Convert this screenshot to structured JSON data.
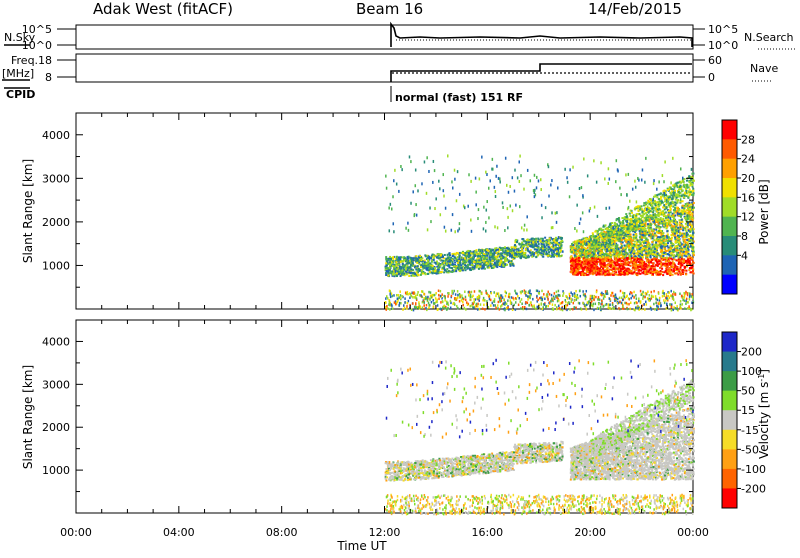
{
  "header": {
    "station": "Adak West (fitACF)",
    "beam": "Beam 16",
    "date": "14/Feb/2015"
  },
  "panels_top": {
    "nsky_label": "N.Sky",
    "nsky_ticks": [
      "10^5",
      "10^0"
    ],
    "nsearch_label": "N.Search",
    "nsearch_ticks": [
      "10^5",
      "10^0"
    ],
    "freq_label": "Freq.",
    "freq_unit": "[MHz]",
    "freq_ticks": [
      "18",
      "8"
    ],
    "nave_label": "Nave",
    "nave_ticks": [
      "60",
      "0"
    ],
    "cpid_label": "CPID",
    "cpid_value": "normal (fast) 151 RF"
  },
  "chart_data": [
    {
      "type": "heatmap",
      "name": "power",
      "ylabel": "Slant Range [km]",
      "yticks": [
        "4000",
        "3000",
        "2000",
        "1000"
      ],
      "colorbar": {
        "label": "Power [dB]",
        "ticks": [
          "28",
          "24",
          "20",
          "16",
          "12",
          "8",
          "4"
        ],
        "colors": [
          "#ff0000",
          "#ff5a00",
          "#ffa000",
          "#f0e000",
          "#a0dc28",
          "#50b450",
          "#288c78",
          "#1e64b4",
          "#0000ff"
        ]
      }
    },
    {
      "type": "heatmap",
      "name": "velocity",
      "ylabel": "Slant Range [km]",
      "yticks": [
        "4000",
        "3000",
        "2000",
        "1000"
      ],
      "colorbar": {
        "label": "Velocity [m s",
        "label_sup": "-1",
        "label_end": "]",
        "ticks": [
          "200",
          "100",
          "50",
          "15",
          "-15",
          "-50",
          "-100",
          "-200"
        ],
        "colors": [
          "#1e28c8",
          "#287a8c",
          "#3c9c46",
          "#7fdc2a",
          "#c8c8c4",
          "#f5dc28",
          "#ffa014",
          "#ff6400",
          "#ff0000"
        ]
      }
    }
  ],
  "xaxis": {
    "ticks": [
      "00:00",
      "04:00",
      "08:00",
      "12:00",
      "16:00",
      "20:00",
      "00:00"
    ],
    "label": "Time UT"
  }
}
